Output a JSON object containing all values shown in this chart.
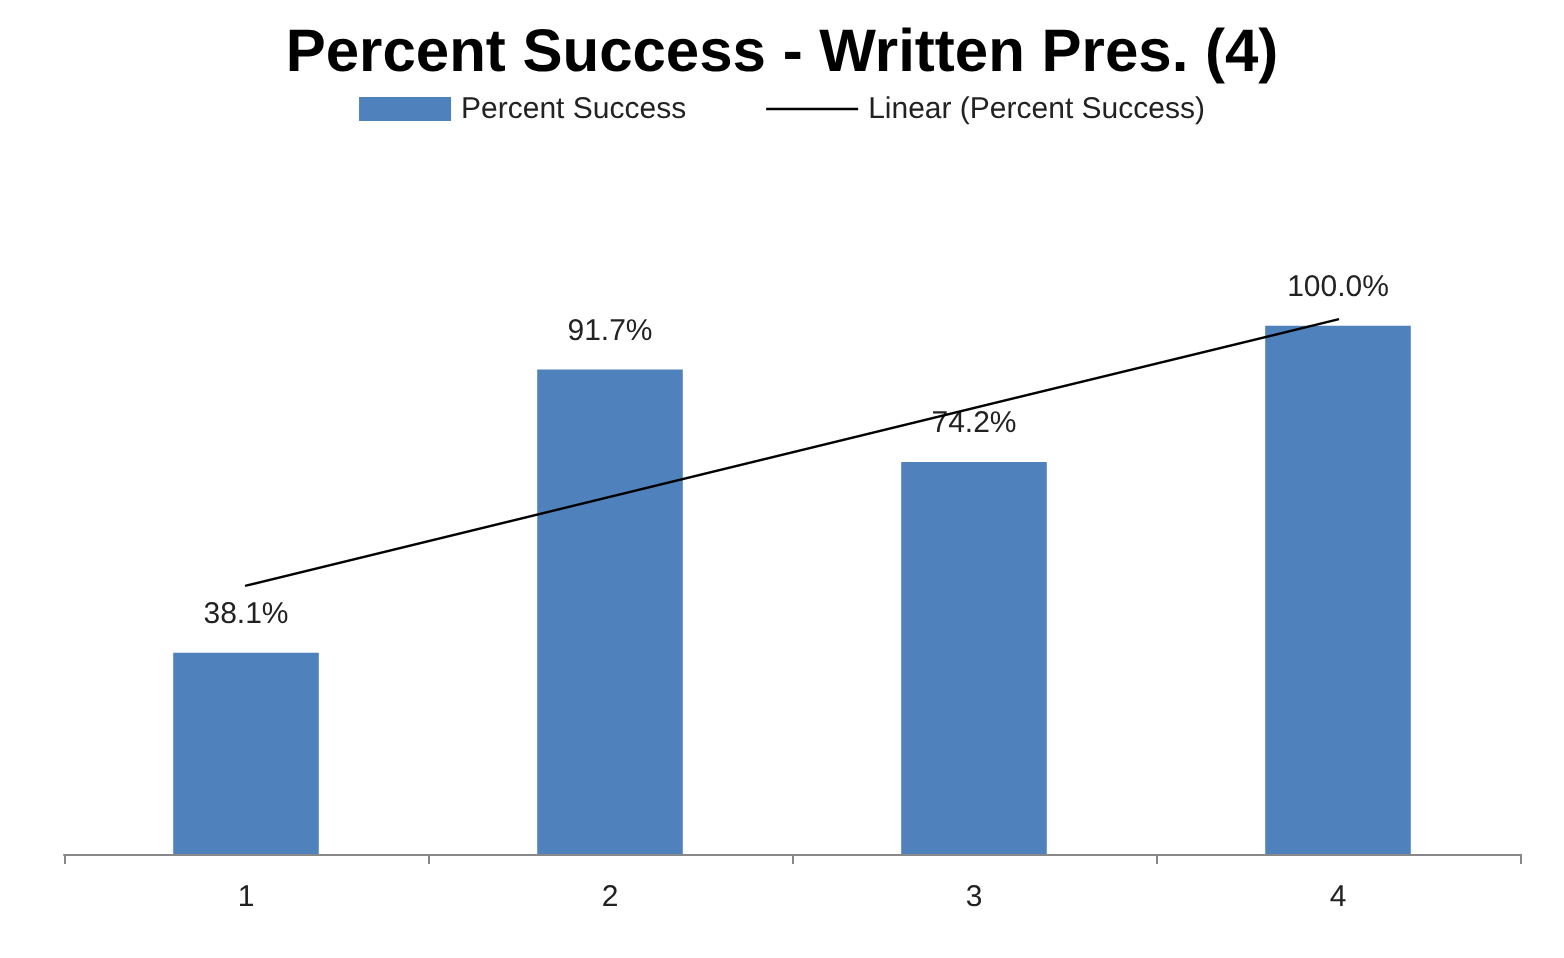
{
  "chart_data": {
    "type": "bar",
    "title": "Percent Success - Written Pres. (4)",
    "categories": [
      "1",
      "2",
      "3",
      "4"
    ],
    "series": [
      {
        "name": "Percent Success",
        "color": "#4f81bd",
        "values": [
          38.1,
          91.7,
          74.2,
          100.0
        ],
        "value_labels": [
          "38.1%",
          "91.7%",
          "74.2%",
          "100.0%"
        ]
      },
      {
        "name": "Linear (Percent Success)",
        "type": "line",
        "color": "#000000",
        "x": [
          "1",
          "4"
        ],
        "values": [
          50.8,
          101.2
        ]
      }
    ],
    "legend": "top",
    "grid": false,
    "marker": "none",
    "line_style": "solid"
  }
}
